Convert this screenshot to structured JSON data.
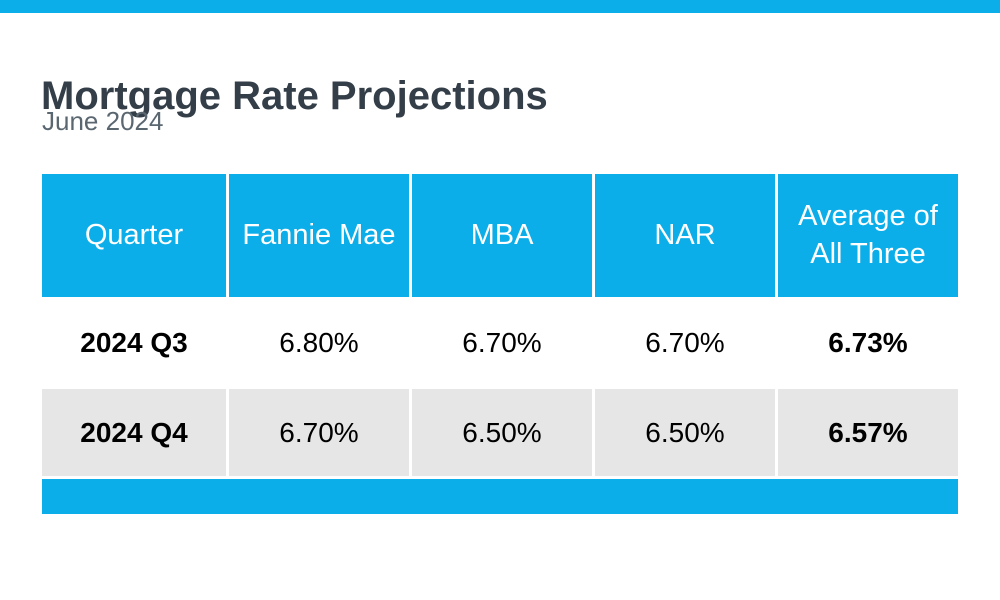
{
  "page": {
    "title": "Mortgage Rate Projections",
    "subtitle": "June 2024"
  },
  "colors": {
    "accent_blue": "#0caeea",
    "title_text": "#333e48",
    "subtitle_text": "#5b6770",
    "header_text": "#ffffff",
    "body_text": "#000000",
    "alt_row_bg": "#e6e6e6"
  },
  "chart_data": {
    "type": "table",
    "title": "Mortgage Rate Projections",
    "subtitle": "June 2024",
    "columns": [
      "Quarter",
      "Fannie Mae",
      "MBA",
      "NAR",
      "Average of All Three"
    ],
    "rows": [
      [
        "2024 Q3",
        "6.80%",
        "6.70%",
        "6.70%",
        "6.73%"
      ],
      [
        "2024 Q4",
        "6.70%",
        "6.50%",
        "6.50%",
        "6.57%"
      ]
    ],
    "notes": {
      "bold_columns": [
        "Quarter",
        "Average of All Three"
      ],
      "numeric_values_percent": {
        "2024 Q3": {
          "Fannie Mae": 6.8,
          "MBA": 6.7,
          "NAR": 6.7,
          "Average of All Three": 6.73
        },
        "2024 Q4": {
          "Fannie Mae": 6.7,
          "MBA": 6.5,
          "NAR": 6.5,
          "Average of All Three": 6.57
        }
      }
    }
  }
}
